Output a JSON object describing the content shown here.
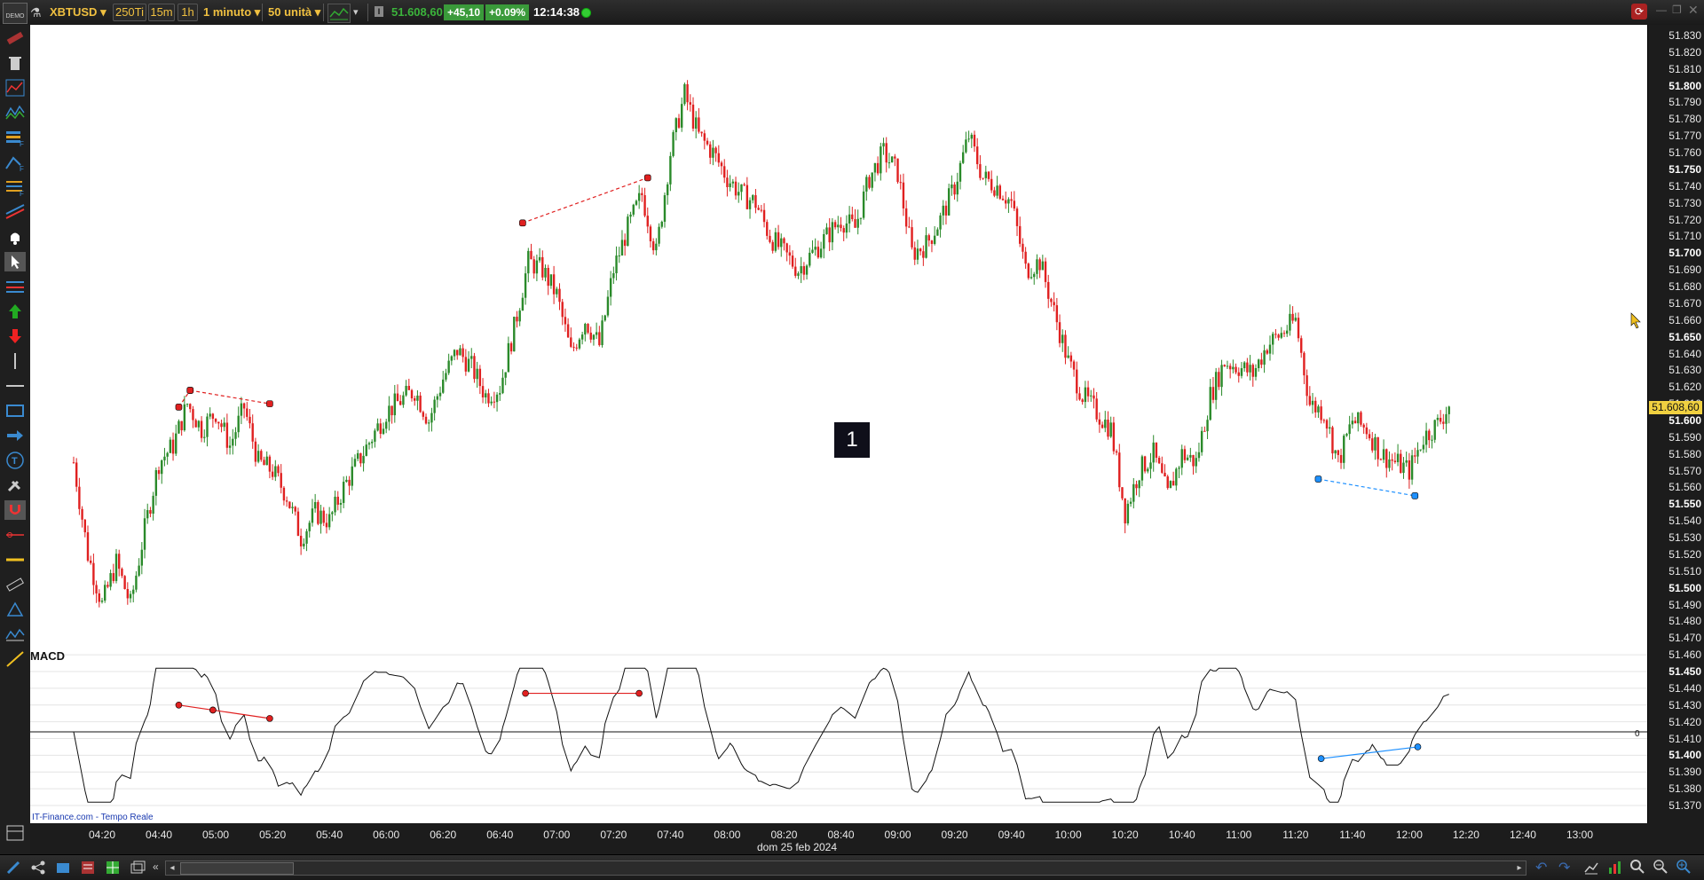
{
  "topbar": {
    "symbol": "XBTUSD",
    "btn_ticks": "250Ti",
    "btn_15m": "15m",
    "btn_1h": "1h",
    "interval": "1 minuto",
    "units": "50 unità",
    "last_price": "51.608,60",
    "change": "+45,10",
    "change_pct": "+0.09%",
    "time": "12:14:38",
    "demo_label": "DEMO"
  },
  "chart": {
    "label_box": "1",
    "current_price": "51.608,60",
    "macd_title": "MACD",
    "macd_zero": "0",
    "watermark": "IT-Finance.com - Tempo Reale",
    "date_label": "dom 25 feb 2024"
  },
  "price_axis": {
    "ticks": [
      "51.830",
      "51.820",
      "51.810",
      "51.800",
      "51.790",
      "51.780",
      "51.770",
      "51.760",
      "51.750",
      "51.740",
      "51.730",
      "51.720",
      "51.710",
      "51.700",
      "51.690",
      "51.680",
      "51.670",
      "51.660",
      "51.650",
      "51.640",
      "51.630",
      "51.620",
      "51.610",
      "51.600",
      "51.590",
      "51.580",
      "51.570",
      "51.560",
      "51.550",
      "51.540",
      "51.530",
      "51.520",
      "51.510",
      "51.500",
      "51.490",
      "51.480",
      "51.470",
      "51.460",
      "51.450",
      "51.440",
      "51.430",
      "51.420",
      "51.410",
      "51.400",
      "51.390",
      "51.380",
      "51.370"
    ]
  },
  "time_axis": {
    "ticks": [
      "04:20",
      "04:40",
      "05:00",
      "05:20",
      "05:40",
      "06:00",
      "06:20",
      "06:40",
      "07:00",
      "07:20",
      "07:40",
      "08:00",
      "08:20",
      "08:40",
      "09:00",
      "09:20",
      "09:40",
      "10:00",
      "10:20",
      "10:40",
      "11:00",
      "11:20",
      "11:40",
      "12:00",
      "12:20",
      "12:40",
      "13:00"
    ]
  },
  "colors": {
    "up": "#2a8a2a",
    "down": "#e02020",
    "accent": "#f0c040",
    "change_bg": "#3a9a3a"
  },
  "chart_data": {
    "type": "candlestick",
    "x_range": [
      "04:10",
      "13:10"
    ],
    "ylim": [
      51465,
      51835
    ],
    "close_series": [
      [
        "04:10",
        51575
      ],
      [
        "04:15",
        51520
      ],
      [
        "04:20",
        51490
      ],
      [
        "04:25",
        51515
      ],
      [
        "04:30",
        51490
      ],
      [
        "04:35",
        51535
      ],
      [
        "04:40",
        51575
      ],
      [
        "04:45",
        51585
      ],
      [
        "04:50",
        51610
      ],
      [
        "04:55",
        51595
      ],
      [
        "05:00",
        51605
      ],
      [
        "05:05",
        51585
      ],
      [
        "05:10",
        51608
      ],
      [
        "05:15",
        51575
      ],
      [
        "05:20",
        51570
      ],
      [
        "05:25",
        51555
      ],
      [
        "05:30",
        51530
      ],
      [
        "05:35",
        51545
      ],
      [
        "05:40",
        51540
      ],
      [
        "05:45",
        51560
      ],
      [
        "05:50",
        51575
      ],
      [
        "05:55",
        51590
      ],
      [
        "06:00",
        51605
      ],
      [
        "06:05",
        51612
      ],
      [
        "06:10",
        51618
      ],
      [
        "06:15",
        51600
      ],
      [
        "06:20",
        51625
      ],
      [
        "06:25",
        51642
      ],
      [
        "06:30",
        51632
      ],
      [
        "06:35",
        51615
      ],
      [
        "06:40",
        51620
      ],
      [
        "06:45",
        51655
      ],
      [
        "06:50",
        51695
      ],
      [
        "06:55",
        51690
      ],
      [
        "07:00",
        51675
      ],
      [
        "07:05",
        51640
      ],
      [
        "07:10",
        51660
      ],
      [
        "07:15",
        51645
      ],
      [
        "07:20",
        51690
      ],
      [
        "07:25",
        51715
      ],
      [
        "07:30",
        51735
      ],
      [
        "07:35",
        51700
      ],
      [
        "07:40",
        51760
      ],
      [
        "07:45",
        51795
      ],
      [
        "07:50",
        51770
      ],
      [
        "07:55",
        51760
      ],
      [
        "08:00",
        51745
      ],
      [
        "08:05",
        51735
      ],
      [
        "08:10",
        51730
      ],
      [
        "08:15",
        51710
      ],
      [
        "08:20",
        51700
      ],
      [
        "08:25",
        51690
      ],
      [
        "08:30",
        51700
      ],
      [
        "08:35",
        51710
      ],
      [
        "08:40",
        51720
      ],
      [
        "08:45",
        51715
      ],
      [
        "08:50",
        51745
      ],
      [
        "08:55",
        51760
      ],
      [
        "09:00",
        51748
      ],
      [
        "09:05",
        51700
      ],
      [
        "09:10",
        51705
      ],
      [
        "09:15",
        51720
      ],
      [
        "09:20",
        51740
      ],
      [
        "09:25",
        51770
      ],
      [
        "09:30",
        51745
      ],
      [
        "09:35",
        51740
      ],
      [
        "09:40",
        51730
      ],
      [
        "09:45",
        51690
      ],
      [
        "09:50",
        51695
      ],
      [
        "09:55",
        51665
      ],
      [
        "10:00",
        51635
      ],
      [
        "10:05",
        51615
      ],
      [
        "10:10",
        51605
      ],
      [
        "10:15",
        51595
      ],
      [
        "10:20",
        51545
      ],
      [
        "10:25",
        51570
      ],
      [
        "10:30",
        51580
      ],
      [
        "10:35",
        51555
      ],
      [
        "10:40",
        51580
      ],
      [
        "10:45",
        51575
      ],
      [
        "10:50",
        51615
      ],
      [
        "10:55",
        51635
      ],
      [
        "11:00",
        51632
      ],
      [
        "11:05",
        51628
      ],
      [
        "11:10",
        51645
      ],
      [
        "11:15",
        51652
      ],
      [
        "11:20",
        51660
      ],
      [
        "11:25",
        51610
      ],
      [
        "11:30",
        51605
      ],
      [
        "11:35",
        51575
      ],
      [
        "11:40",
        51600
      ],
      [
        "11:45",
        51595
      ],
      [
        "11:50",
        51580
      ],
      [
        "11:55",
        51575
      ],
      [
        "12:00",
        51570
      ],
      [
        "12:05",
        51590
      ],
      [
        "12:10",
        51598
      ],
      [
        "12:14",
        51608.6
      ]
    ],
    "price_divergence_lines": [
      {
        "color": "red",
        "points": [
          [
            "04:47",
            51608
          ],
          [
            "04:51",
            51618
          ]
        ]
      },
      {
        "color": "red",
        "points": [
          [
            "04:51",
            51618
          ],
          [
            "05:19",
            51610
          ]
        ]
      },
      {
        "color": "red",
        "points": [
          [
            "06:48",
            51718
          ],
          [
            "07:32",
            51745
          ]
        ]
      },
      {
        "color": "blue",
        "points": [
          [
            "11:28",
            51565
          ],
          [
            "12:02",
            51555
          ]
        ]
      }
    ],
    "macd": {
      "title": "MACD",
      "zero_line": 0,
      "divergence_lines": [
        {
          "color": "red",
          "points": [
            [
              "04:47",
              51430
            ],
            [
              "04:59",
              51427
            ]
          ]
        },
        {
          "color": "red",
          "points": [
            [
              "04:59",
              51427
            ],
            [
              "05:19",
              51422
            ]
          ]
        },
        {
          "color": "red",
          "points": [
            [
              "06:49",
              51437
            ],
            [
              "07:29",
              51437
            ]
          ]
        },
        {
          "color": "blue",
          "points": [
            [
              "11:29",
              51398
            ],
            [
              "12:03",
              51405
            ]
          ]
        }
      ]
    }
  }
}
